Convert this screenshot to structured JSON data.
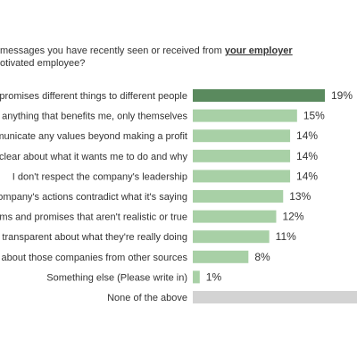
{
  "question": {
    "line1_prefix": "messages you have recently seen or received from ",
    "line1_emphasis": "your employer",
    "line2": "otivated employee?"
  },
  "chart_data": {
    "type": "bar",
    "orientation": "horizontal",
    "value_unit": "%",
    "xlim": [
      0,
      19
    ],
    "highlight_color": "#5a8a5e",
    "bar_color": "#a8d0a6",
    "empty_bar_color": "#d3d3d3",
    "categories": [
      "y promises different things to different people",
      "ut anything that benefits me, only themselves",
      "mmunicate any values beyond making a profit",
      "ot clear about what it wants me to do and why",
      "I don't respect the company's leadership",
      "company's actions contradict what it's saying",
      "aims and promises that aren't realistic or true",
      "or transparent about what they're really doing",
      "gs about those companies from other sources",
      "Something else (Please write in)",
      "None of the above"
    ],
    "values": [
      19,
      15,
      14,
      14,
      14,
      13,
      12,
      11,
      8,
      1,
      null
    ],
    "value_labels": [
      "19%",
      "15%",
      "14%",
      "14%",
      "14%",
      "13%",
      "12%",
      "11%",
      "8%",
      "1%",
      ""
    ]
  }
}
